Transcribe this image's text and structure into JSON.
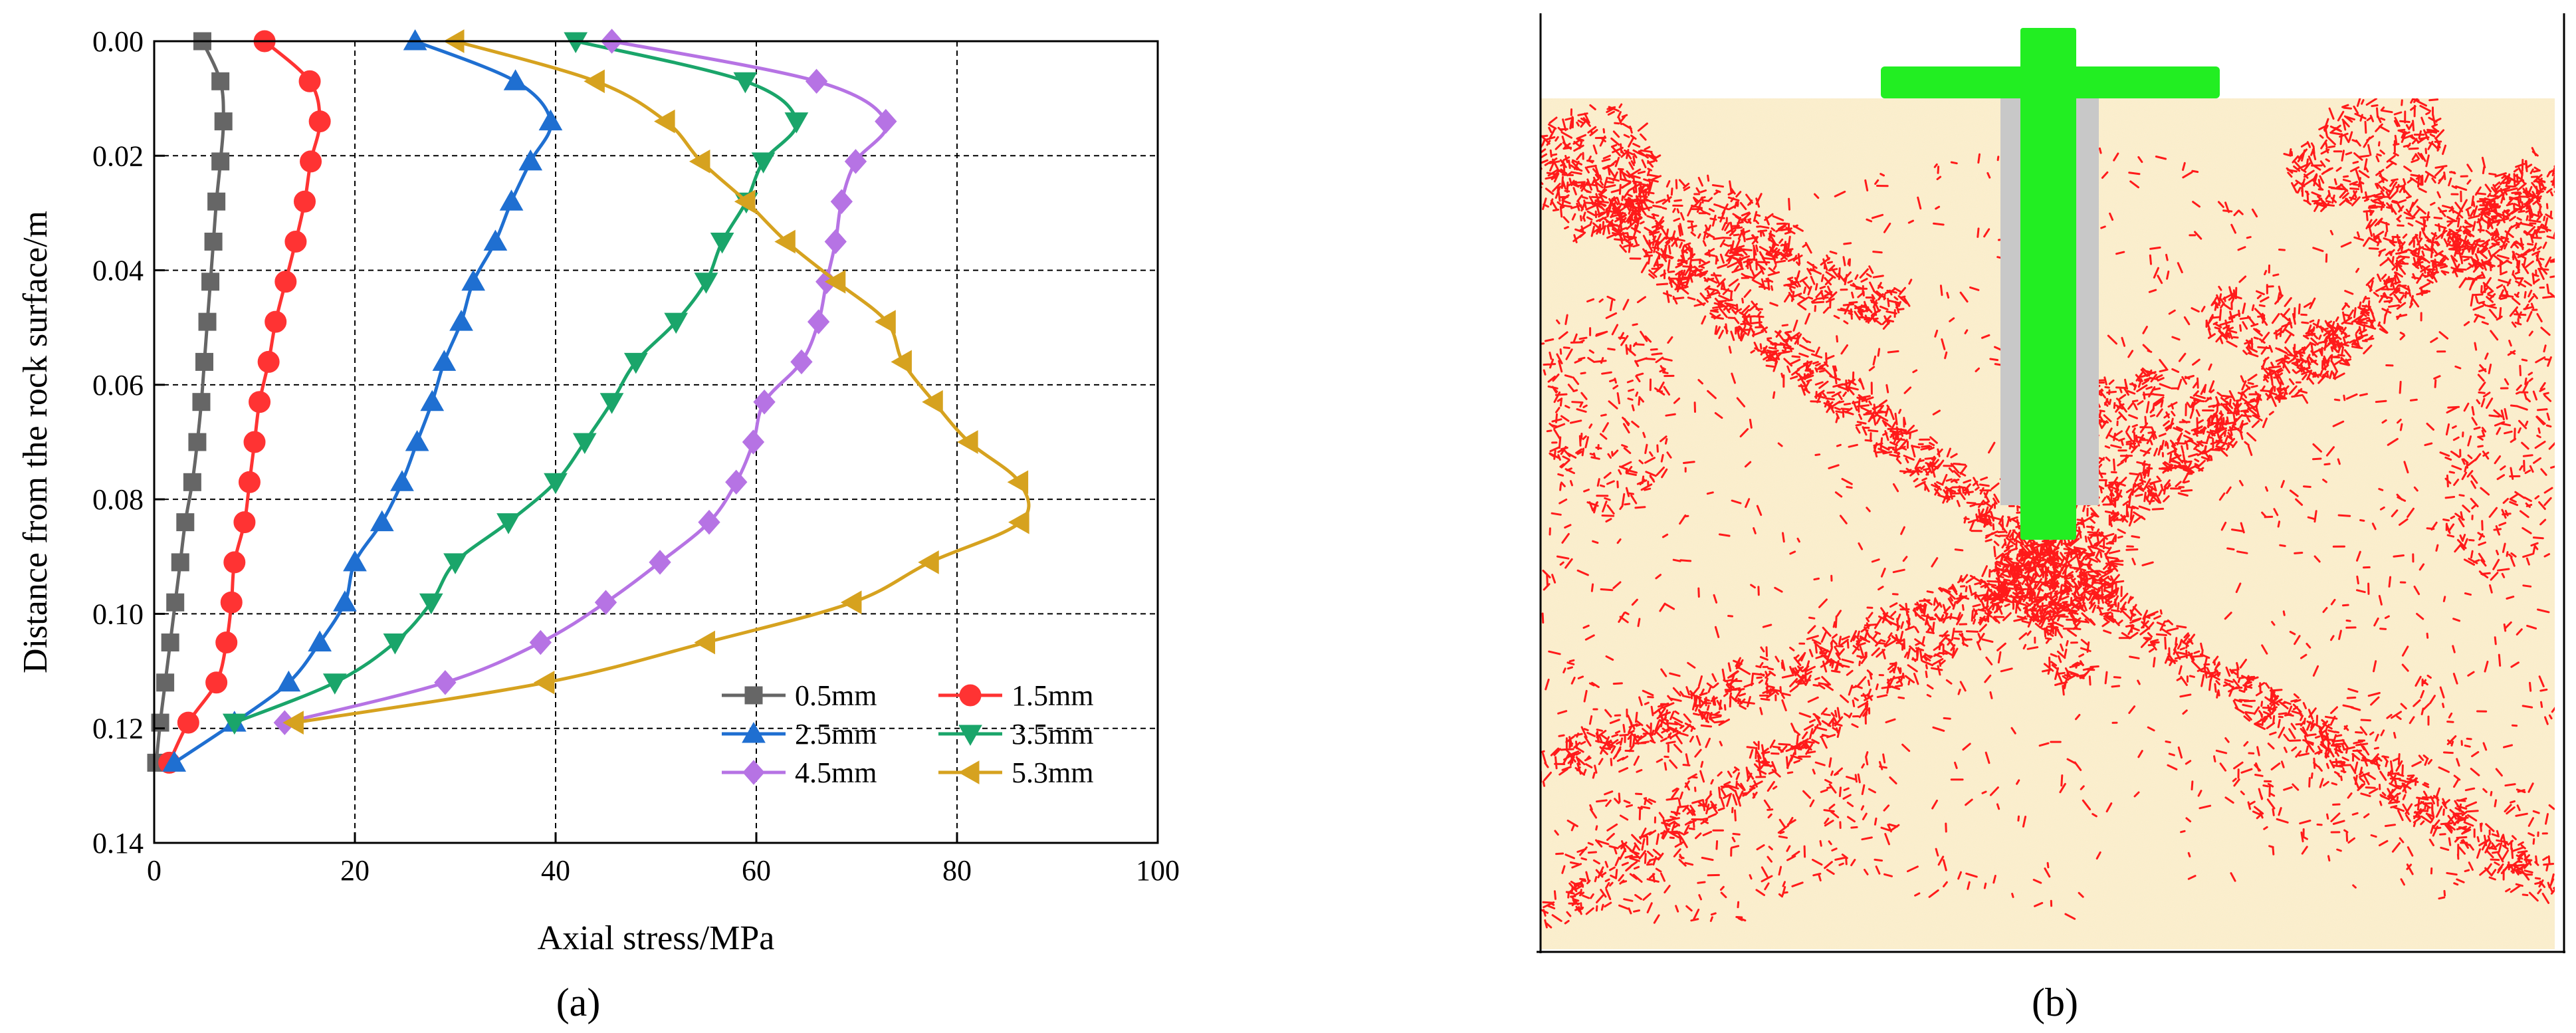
{
  "figure": {
    "panel_a_label": "(a)",
    "panel_b_label": "(b)"
  },
  "chart_data": {
    "type": "line",
    "title": "",
    "xlabel": "Axial stress/MPa",
    "ylabel": "Distance from the rock surface/m",
    "xlim": [
      0,
      100
    ],
    "ylim": [
      0.14,
      0.0
    ],
    "y_inverted": true,
    "grid": true,
    "legend_location": "lower-right",
    "x_ticks": [
      "0",
      "20",
      "40",
      "60",
      "80",
      "100"
    ],
    "y_ticks": [
      "0.00",
      "0.02",
      "0.04",
      "0.06",
      "0.08",
      "0.10",
      "0.12",
      "0.14"
    ],
    "series": [
      {
        "name": "0.5mm",
        "color": "#666666",
        "marker": "square",
        "points": [
          [
            4.8,
            0.0
          ],
          [
            6.6,
            0.007
          ],
          [
            6.9,
            0.014
          ],
          [
            6.6,
            0.021
          ],
          [
            6.2,
            0.028
          ],
          [
            5.9,
            0.035
          ],
          [
            5.6,
            0.042
          ],
          [
            5.3,
            0.049
          ],
          [
            5.0,
            0.056
          ],
          [
            4.7,
            0.063
          ],
          [
            4.3,
            0.07
          ],
          [
            3.8,
            0.077
          ],
          [
            3.1,
            0.084
          ],
          [
            2.6,
            0.091
          ],
          [
            2.1,
            0.098
          ],
          [
            1.6,
            0.105
          ],
          [
            1.1,
            0.112
          ],
          [
            0.6,
            0.119
          ],
          [
            0.2,
            0.126
          ]
        ]
      },
      {
        "name": "1.5mm",
        "color": "#ff3333",
        "marker": "circle",
        "points": [
          [
            11.0,
            0.0
          ],
          [
            15.5,
            0.007
          ],
          [
            16.5,
            0.014
          ],
          [
            15.6,
            0.021
          ],
          [
            15.0,
            0.028
          ],
          [
            14.1,
            0.035
          ],
          [
            13.1,
            0.042
          ],
          [
            12.1,
            0.049
          ],
          [
            11.4,
            0.056
          ],
          [
            10.5,
            0.063
          ],
          [
            10.0,
            0.07
          ],
          [
            9.5,
            0.077
          ],
          [
            9.0,
            0.084
          ],
          [
            8.0,
            0.091
          ],
          [
            7.7,
            0.098
          ],
          [
            7.2,
            0.105
          ],
          [
            6.2,
            0.112
          ],
          [
            3.4,
            0.119
          ],
          [
            1.5,
            0.126
          ]
        ]
      },
      {
        "name": "2.5mm",
        "color": "#1f6fd1",
        "marker": "triangle-up",
        "points": [
          [
            26.0,
            0.0
          ],
          [
            36.0,
            0.007
          ],
          [
            39.5,
            0.014
          ],
          [
            37.5,
            0.021
          ],
          [
            35.6,
            0.028
          ],
          [
            34.0,
            0.035
          ],
          [
            31.8,
            0.042
          ],
          [
            30.6,
            0.049
          ],
          [
            28.9,
            0.056
          ],
          [
            27.7,
            0.063
          ],
          [
            26.2,
            0.07
          ],
          [
            24.7,
            0.077
          ],
          [
            22.7,
            0.084
          ],
          [
            20.0,
            0.091
          ],
          [
            19.0,
            0.098
          ],
          [
            16.5,
            0.105
          ],
          [
            13.4,
            0.112
          ],
          [
            8.0,
            0.119
          ],
          [
            2.0,
            0.126
          ]
        ]
      },
      {
        "name": "3.5mm",
        "color": "#1aa56a",
        "marker": "triangle-down",
        "points": [
          [
            42.0,
            0.0
          ],
          [
            58.9,
            0.007
          ],
          [
            64.0,
            0.014
          ],
          [
            60.7,
            0.021
          ],
          [
            59.0,
            0.028
          ],
          [
            56.6,
            0.035
          ],
          [
            55.0,
            0.042
          ],
          [
            52.0,
            0.049
          ],
          [
            48.0,
            0.056
          ],
          [
            45.6,
            0.063
          ],
          [
            42.9,
            0.07
          ],
          [
            40.0,
            0.077
          ],
          [
            35.3,
            0.084
          ],
          [
            30.0,
            0.091
          ],
          [
            27.6,
            0.098
          ],
          [
            24.0,
            0.105
          ],
          [
            18.0,
            0.112
          ],
          [
            8.0,
            0.119
          ]
        ]
      },
      {
        "name": "4.5mm",
        "color": "#b673e4",
        "marker": "diamond",
        "points": [
          [
            45.6,
            0.0
          ],
          [
            66.0,
            0.007
          ],
          [
            72.9,
            0.014
          ],
          [
            69.9,
            0.021
          ],
          [
            68.5,
            0.028
          ],
          [
            67.9,
            0.035
          ],
          [
            67.0,
            0.042
          ],
          [
            66.2,
            0.049
          ],
          [
            64.5,
            0.056
          ],
          [
            60.8,
            0.063
          ],
          [
            59.7,
            0.07
          ],
          [
            58.0,
            0.077
          ],
          [
            55.3,
            0.084
          ],
          [
            50.4,
            0.091
          ],
          [
            45.0,
            0.098
          ],
          [
            38.5,
            0.105
          ],
          [
            29.0,
            0.112
          ],
          [
            13.0,
            0.119
          ]
        ]
      },
      {
        "name": "5.3mm",
        "color": "#d6a21f",
        "marker": "triangle-left",
        "points": [
          [
            30.0,
            0.0
          ],
          [
            44.0,
            0.007
          ],
          [
            51.0,
            0.014
          ],
          [
            54.5,
            0.021
          ],
          [
            59.0,
            0.028
          ],
          [
            63.0,
            0.035
          ],
          [
            68.0,
            0.042
          ],
          [
            73.0,
            0.049
          ],
          [
            74.6,
            0.056
          ],
          [
            77.7,
            0.063
          ],
          [
            81.2,
            0.07
          ],
          [
            86.2,
            0.077
          ],
          [
            86.3,
            0.084
          ],
          [
            77.3,
            0.091
          ],
          [
            69.6,
            0.098
          ],
          [
            55.0,
            0.105
          ],
          [
            39.0,
            0.112
          ],
          [
            14.0,
            0.119
          ]
        ]
      }
    ]
  },
  "simulation": {
    "colors": {
      "rock": "#faecc7",
      "crack": "#ff1a1a",
      "bolt": "#22ee22",
      "grout": "#c8c8c8",
      "frame": "#000000"
    }
  }
}
